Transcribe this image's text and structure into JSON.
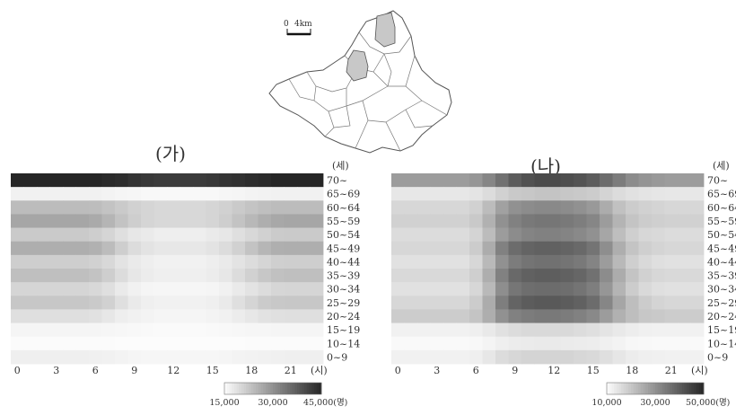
{
  "map": {
    "scale_zero": "0",
    "scale_distance": "4km"
  },
  "chart_data": [
    {
      "type": "heatmap",
      "title": "(가)",
      "ylabel": "(세)",
      "xlabel": "(시)",
      "rows": [
        "70~",
        "65~69",
        "60~64",
        "55~59",
        "50~54",
        "45~49",
        "40~44",
        "35~39",
        "30~34",
        "25~29",
        "20~24",
        "15~19",
        "10~14",
        "0~9"
      ],
      "x": [
        0,
        1,
        2,
        3,
        4,
        5,
        6,
        7,
        8,
        9,
        10,
        11,
        12,
        13,
        14,
        15,
        16,
        17,
        18,
        19,
        20,
        21,
        22,
        23
      ],
      "x_ticks": [
        0,
        3,
        6,
        9,
        12,
        15,
        18,
        21
      ],
      "values": [
        [
          45000,
          45000,
          45000,
          45000,
          45000,
          45000,
          45000,
          44500,
          44000,
          43000,
          42500,
          42000,
          42000,
          42000,
          42000,
          42500,
          43000,
          43500,
          44000,
          44500,
          45000,
          45000,
          45000,
          45000
        ],
        [
          16500,
          16500,
          16500,
          16500,
          16500,
          16500,
          16500,
          16300,
          16000,
          15800,
          15600,
          15500,
          15500,
          15500,
          15500,
          15600,
          15800,
          16000,
          16200,
          16400,
          16500,
          16500,
          16500,
          16500
        ],
        [
          24000,
          24000,
          24000,
          24000,
          24000,
          24000,
          23800,
          23000,
          22000,
          21000,
          20500,
          20000,
          20000,
          20000,
          20000,
          20500,
          21000,
          22000,
          22800,
          23500,
          24000,
          24000,
          24000,
          24000
        ],
        [
          27000,
          27000,
          27000,
          27000,
          27000,
          27000,
          26500,
          25000,
          23000,
          21500,
          20500,
          20000,
          20000,
          20000,
          20000,
          20500,
          21500,
          23000,
          24500,
          26000,
          26800,
          27000,
          27000,
          27000
        ],
        [
          22000,
          22000,
          22000,
          22000,
          22000,
          22000,
          21500,
          20500,
          19000,
          18000,
          17500,
          17000,
          17000,
          17000,
          17000,
          17500,
          18000,
          19000,
          20000,
          21000,
          21800,
          22000,
          22000,
          22000
        ],
        [
          26000,
          26000,
          26000,
          26000,
          26000,
          26000,
          25500,
          24000,
          21500,
          19500,
          18500,
          18000,
          18000,
          18000,
          18000,
          18500,
          19500,
          21000,
          23000,
          24800,
          25800,
          26000,
          26000,
          26000
        ],
        [
          21500,
          21500,
          21500,
          21500,
          21500,
          21500,
          21000,
          20000,
          18500,
          17500,
          17000,
          16500,
          16500,
          16500,
          16500,
          17000,
          17500,
          18500,
          19500,
          20500,
          21300,
          21500,
          21500,
          21500
        ],
        [
          23500,
          23500,
          23500,
          23500,
          23500,
          23500,
          23000,
          21500,
          19500,
          18000,
          17200,
          16800,
          16800,
          16800,
          16800,
          17200,
          18000,
          19500,
          21000,
          22500,
          23300,
          23500,
          23500,
          23500
        ],
        [
          20500,
          20500,
          20500,
          20500,
          20500,
          20500,
          20000,
          19000,
          17500,
          16500,
          16000,
          15800,
          15800,
          15800,
          15800,
          16000,
          16500,
          17500,
          18500,
          19500,
          20300,
          20500,
          20500,
          20500
        ],
        [
          22500,
          22500,
          22500,
          22500,
          22500,
          22500,
          22000,
          21000,
          19000,
          17500,
          16800,
          16500,
          16500,
          16500,
          16500,
          16800,
          17500,
          19000,
          20500,
          21800,
          22300,
          22500,
          22500,
          22500
        ],
        [
          19000,
          19000,
          19000,
          19000,
          19000,
          19000,
          18800,
          18000,
          17000,
          16500,
          16200,
          16000,
          16000,
          16000,
          16000,
          16200,
          16500,
          17200,
          18000,
          18600,
          18900,
          19000,
          19000,
          19000
        ],
        [
          16000,
          16000,
          16000,
          16000,
          16000,
          16000,
          16000,
          15900,
          15700,
          15500,
          15400,
          15300,
          15300,
          15300,
          15300,
          15400,
          15500,
          15700,
          15800,
          15900,
          16000,
          16000,
          16000,
          16000
        ],
        [
          15200,
          15200,
          15200,
          15200,
          15200,
          15200,
          15200,
          15100,
          15000,
          15000,
          15000,
          15000,
          15000,
          15000,
          15000,
          15000,
          15000,
          15000,
          15100,
          15100,
          15200,
          15200,
          15200,
          15200
        ],
        [
          16800,
          16800,
          16800,
          16800,
          16800,
          16800,
          16700,
          16500,
          16200,
          16000,
          15900,
          15800,
          15800,
          15800,
          15800,
          15900,
          16000,
          16200,
          16400,
          16600,
          16700,
          16800,
          16800,
          16800
        ]
      ],
      "colorbar": {
        "min": 15000,
        "max": 45000,
        "ticks": [
          "15,000",
          "30,000",
          "45,000(명)"
        ]
      }
    },
    {
      "type": "heatmap",
      "title": "(나)",
      "ylabel": "(세)",
      "xlabel": "(시)",
      "rows": [
        "70~",
        "65~69",
        "60~64",
        "55~59",
        "50~54",
        "45~49",
        "40~44",
        "35~39",
        "30~34",
        "25~29",
        "20~24",
        "15~19",
        "10~14",
        "0~9"
      ],
      "x": [
        0,
        1,
        2,
        3,
        4,
        5,
        6,
        7,
        8,
        9,
        10,
        11,
        12,
        13,
        14,
        15,
        16,
        17,
        18,
        19,
        20,
        21,
        22,
        23
      ],
      "x_ticks": [
        0,
        3,
        6,
        9,
        12,
        15,
        18,
        21
      ],
      "values": [
        [
          28000,
          28000,
          28000,
          28000,
          28000,
          28000,
          29000,
          32000,
          36000,
          40000,
          42000,
          43000,
          43000,
          42500,
          41500,
          40000,
          37000,
          34000,
          31000,
          29500,
          28500,
          28000,
          28000,
          28000
        ],
        [
          14000,
          14000,
          14000,
          14000,
          14000,
          14000,
          14500,
          16000,
          18000,
          19500,
          20000,
          20500,
          20500,
          20000,
          19500,
          19000,
          17500,
          16000,
          15000,
          14500,
          14200,
          14000,
          14000,
          14000
        ],
        [
          17000,
          17000,
          17000,
          17000,
          17000,
          17000,
          18000,
          22000,
          27000,
          30000,
          31000,
          31500,
          31500,
          31000,
          30000,
          28500,
          25000,
          21000,
          19000,
          18000,
          17500,
          17000,
          17000,
          17000
        ],
        [
          18000,
          18000,
          18000,
          18000,
          18000,
          18000,
          19500,
          24000,
          30000,
          33000,
          34500,
          35000,
          35000,
          34500,
          33500,
          32000,
          28000,
          23500,
          20500,
          19000,
          18500,
          18000,
          18000,
          18000
        ],
        [
          16000,
          16000,
          16000,
          16000,
          16000,
          16000,
          17500,
          22000,
          28000,
          31000,
          32500,
          33000,
          33000,
          32500,
          31500,
          30000,
          26000,
          21500,
          18500,
          17000,
          16500,
          16000,
          16000,
          16000
        ],
        [
          17000,
          17000,
          17000,
          17000,
          17000,
          17000,
          19000,
          25000,
          33000,
          37000,
          38500,
          39000,
          39000,
          38500,
          37500,
          35500,
          30500,
          24500,
          20500,
          18500,
          17500,
          17000,
          17000,
          17000
        ],
        [
          15000,
          15000,
          15000,
          15000,
          15000,
          15000,
          17000,
          22500,
          30000,
          34000,
          35500,
          36000,
          36000,
          35500,
          34500,
          32500,
          28000,
          22500,
          18500,
          16500,
          15500,
          15000,
          15000,
          15000
        ],
        [
          16500,
          16500,
          16500,
          16500,
          16500,
          16500,
          18500,
          24500,
          33000,
          37500,
          39000,
          39500,
          39500,
          39000,
          38000,
          36000,
          31000,
          25000,
          20500,
          18000,
          17000,
          16500,
          16500,
          16500
        ],
        [
          15000,
          15000,
          15000,
          15000,
          15000,
          15000,
          17000,
          22500,
          30500,
          35000,
          36500,
          37000,
          37000,
          36500,
          35500,
          33500,
          29000,
          23500,
          19000,
          16500,
          15500,
          15000,
          15000,
          15000
        ],
        [
          17000,
          17000,
          17000,
          17000,
          17000,
          17000,
          19000,
          25000,
          33500,
          38500,
          40000,
          40500,
          40500,
          40000,
          39000,
          37000,
          32000,
          26000,
          21500,
          19000,
          17500,
          17000,
          17000,
          17000
        ],
        [
          19000,
          19000,
          19000,
          19000,
          19000,
          19000,
          20500,
          24500,
          30000,
          33000,
          34000,
          34500,
          34500,
          34000,
          33000,
          31500,
          28000,
          24000,
          21500,
          20000,
          19500,
          19000,
          19000,
          19000
        ],
        [
          12000,
          12000,
          12000,
          12000,
          12000,
          12000,
          12500,
          13500,
          15000,
          16000,
          16500,
          16500,
          16500,
          16500,
          16000,
          15500,
          14500,
          13500,
          12800,
          12300,
          12100,
          12000,
          12000,
          12000
        ],
        [
          10500,
          10500,
          10500,
          10500,
          10500,
          10500,
          10800,
          11500,
          12500,
          13000,
          13200,
          13300,
          13300,
          13200,
          13000,
          12800,
          12200,
          11600,
          11000,
          10700,
          10600,
          10500,
          10500,
          10500
        ],
        [
          12000,
          12000,
          12000,
          12000,
          12000,
          12000,
          12500,
          14000,
          16000,
          17000,
          17500,
          17500,
          17500,
          17500,
          17000,
          16500,
          15500,
          14200,
          13000,
          12500,
          12200,
          12000,
          12000,
          12000
        ]
      ],
      "colorbar": {
        "min": 10000,
        "max": 50000,
        "ticks": [
          "10,000",
          "30,000",
          "50,000(명)"
        ]
      }
    }
  ]
}
